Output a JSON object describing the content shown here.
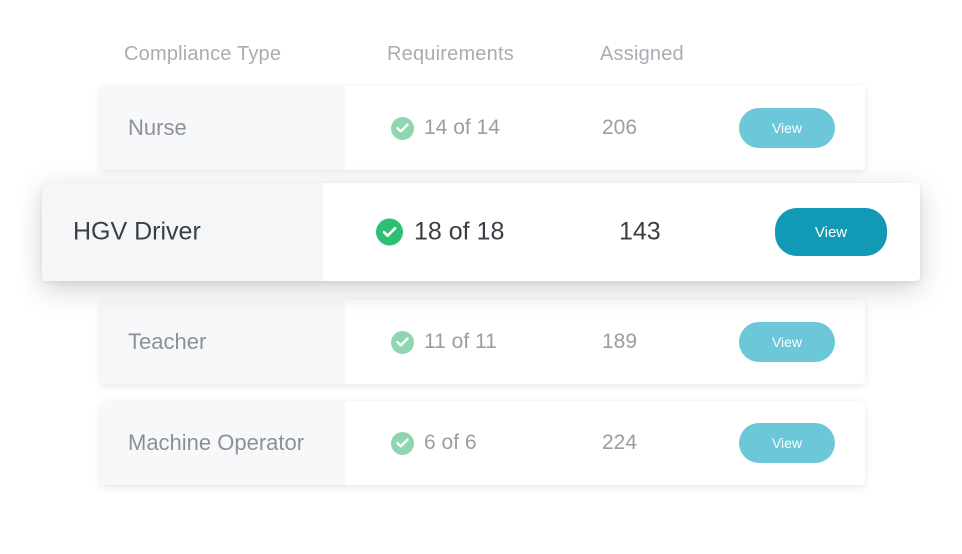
{
  "headers": {
    "type": "Compliance Type",
    "requirements": "Requirements",
    "assigned": "Assigned"
  },
  "rows": [
    {
      "type": "Nurse",
      "requirements": "14 of 14",
      "assigned": "206",
      "action": "View",
      "status_icon": "check-circle-icon"
    },
    {
      "type": "HGV Driver",
      "requirements": "18 of 18",
      "assigned": "143",
      "action": "View",
      "status_icon": "check-circle-icon",
      "highlighted": true
    },
    {
      "type": "Teacher",
      "requirements": "11 of 11",
      "assigned": "189",
      "action": "View",
      "status_icon": "check-circle-icon"
    },
    {
      "type": "Machine Operator",
      "requirements": "6 of 6",
      "assigned": "224",
      "action": "View",
      "status_icon": "check-circle-icon"
    }
  ],
  "colors": {
    "check_light": "#8ed6b0",
    "check_dark": "#2fbf73",
    "button_light": "#6cc7d8",
    "button_dark": "#1199b6",
    "header_text": "#a9adb3"
  }
}
